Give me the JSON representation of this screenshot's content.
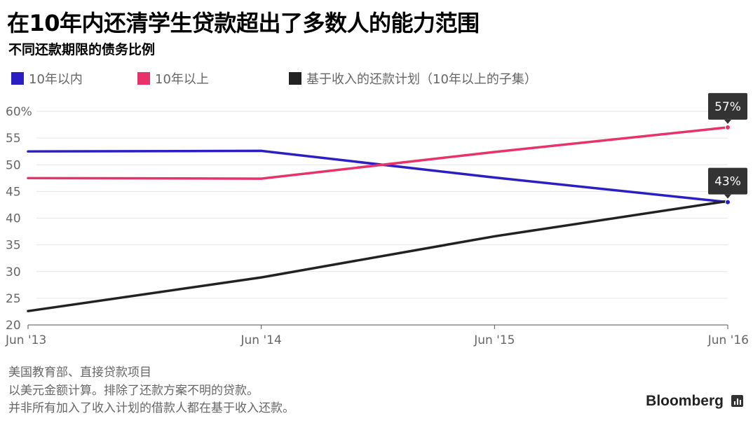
{
  "title": "在10年内还清学生贷款超出了多数人的能力范围",
  "subtitle": "不同还款期限的债务比例",
  "legend": [
    {
      "label": "10年以内",
      "color": "#2b1fc4"
    },
    {
      "label": "10年以上",
      "color": "#e8336a"
    },
    {
      "label": "基于收入的还款计划（10年以上的子集）",
      "color": "#222222"
    }
  ],
  "chart_data": {
    "type": "line",
    "x": [
      "Jun '13",
      "Jun '14",
      "Jun '15",
      "Jun '16"
    ],
    "yticks": [
      "60%",
      "55",
      "50",
      "45",
      "40",
      "35",
      "30",
      "25",
      "20"
    ],
    "ylim": [
      20,
      60
    ],
    "grid": true,
    "legend_position": "top-left",
    "series": [
      {
        "name": "10年以内",
        "color": "#2b1fc4",
        "values": [
          52.5,
          52.6,
          47.6,
          43.0
        ]
      },
      {
        "name": "10年以上",
        "color": "#e8336a",
        "values": [
          47.5,
          47.4,
          52.4,
          57.0
        ]
      },
      {
        "name": "基于收入的还款计划（10年以上的子集）",
        "color": "#222222",
        "values": [
          22.6,
          28.9,
          36.6,
          43.2
        ]
      }
    ],
    "annotations": [
      {
        "text": "57%",
        "x": "Jun '16",
        "y": 57.0
      },
      {
        "text": "43%",
        "x": "Jun '16",
        "y": 43.0
      }
    ]
  },
  "notes": [
    "美国教育部、直接贷款项目",
    "以美元金额计算。排除了还款方案不明的贷款。",
    "并非所有加入了收入计划的借款人都在基于收入还款。"
  ],
  "brand": "Bloomberg"
}
